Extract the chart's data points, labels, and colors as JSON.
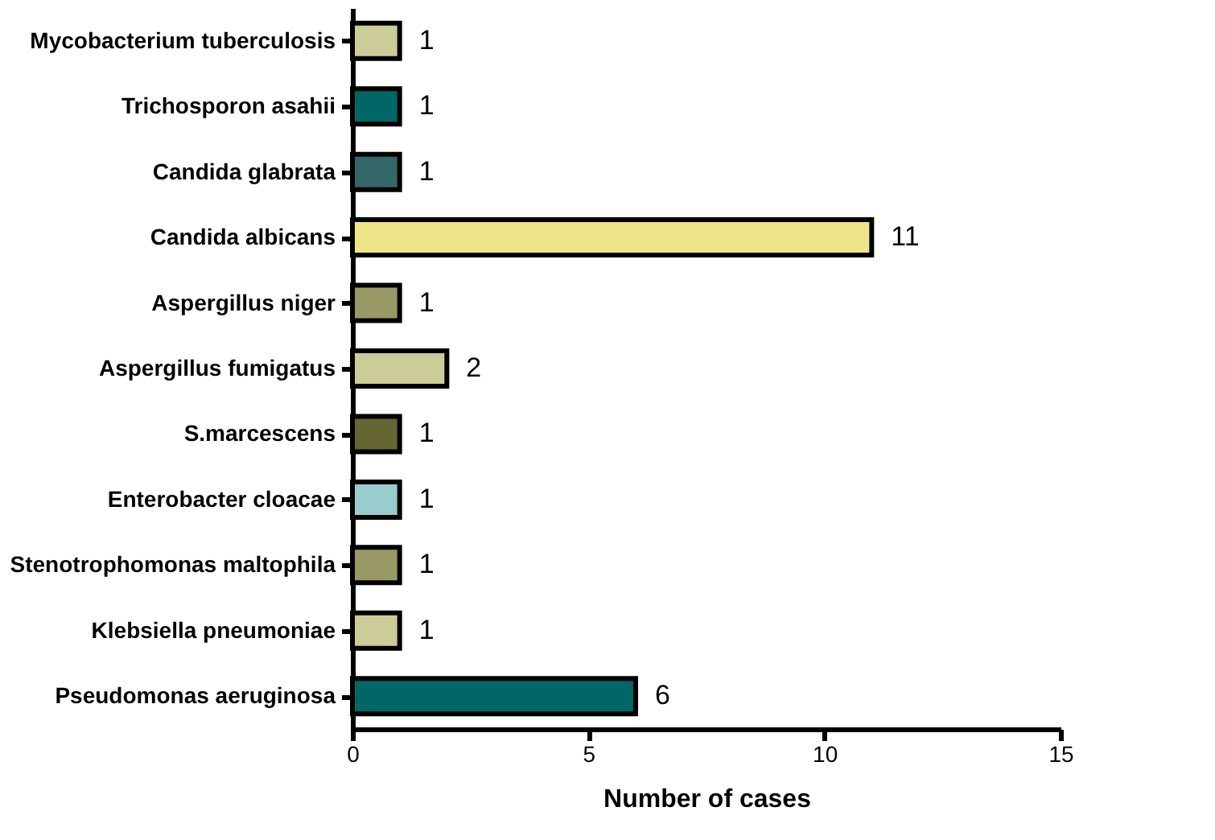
{
  "chart_data": {
    "type": "bar",
    "orientation": "horizontal",
    "xlabel": "Number of cases",
    "categories": [
      "Mycobacterium tuberculosis",
      "Trichosporon asahii",
      "Candida glabrata",
      "Candida albicans",
      "Aspergillus niger",
      "Aspergillus fumigatus",
      "S.marcescens",
      "Enterobacter cloacae",
      "Stenotrophomonas maltophila",
      "Klebsiella pneumoniae",
      "Pseudomonas aeruginosa"
    ],
    "values": [
      1,
      1,
      1,
      11,
      1,
      2,
      1,
      1,
      1,
      1,
      6
    ],
    "colors": [
      "#cccc99",
      "#006666",
      "#336666",
      "#eee58a",
      "#999966",
      "#cccc99",
      "#666633",
      "#99cccc",
      "#999966",
      "#cccc99",
      "#006666"
    ],
    "xlim": [
      0,
      15
    ],
    "xticks": [
      0,
      5,
      10,
      15
    ],
    "data_labels": true,
    "grid": false
  }
}
